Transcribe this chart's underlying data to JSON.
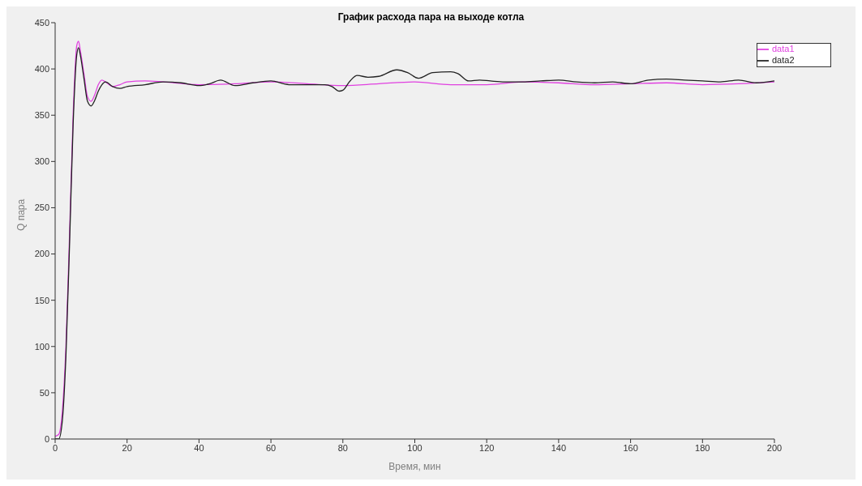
{
  "chart_data": {
    "type": "line",
    "title": "График расхода пара на выходе котла",
    "xlabel": "Время, мин",
    "ylabel": "Q пара",
    "xlim": [
      0,
      200
    ],
    "xticks": [
      0,
      20,
      40,
      60,
      80,
      100,
      120,
      140,
      160,
      180,
      200
    ],
    "ylim": [
      0,
      450
    ],
    "yticks": [
      0,
      50,
      100,
      150,
      200,
      250,
      300,
      350,
      400,
      450
    ],
    "legend": "top right",
    "grid": false,
    "marker": "none",
    "line_style": "solid",
    "series": [
      {
        "name": "data1",
        "color": "#e040e0",
        "x": [
          0,
          1,
          2,
          3,
          4,
          5,
          6,
          6.5,
          7,
          8,
          9,
          10,
          11,
          12,
          13,
          14,
          16,
          18,
          20,
          25,
          30,
          40,
          50,
          60,
          70,
          80,
          90,
          100,
          110,
          120,
          130,
          140,
          150,
          160,
          170,
          180,
          190,
          200
        ],
        "values": [
          3,
          5,
          30,
          100,
          220,
          350,
          425,
          430,
          420,
          395,
          370,
          365,
          372,
          383,
          388,
          386,
          381,
          383,
          386,
          387,
          386,
          383,
          384,
          386,
          384,
          382,
          384,
          386,
          383,
          383,
          386,
          385,
          383,
          384,
          385,
          383,
          384,
          386
        ]
      },
      {
        "name": "data2",
        "color": "#222222",
        "x": [
          0,
          1,
          2,
          3,
          4,
          5,
          6,
          6.5,
          7,
          8,
          9,
          10,
          11,
          12,
          13,
          14,
          16,
          18,
          20,
          25,
          30,
          35,
          40,
          43,
          46,
          50,
          55,
          60,
          65,
          70,
          75,
          77,
          79,
          80,
          82,
          84,
          87,
          90,
          95,
          98,
          101,
          105,
          110,
          112,
          115,
          118,
          121,
          125,
          130,
          135,
          140,
          145,
          150,
          155,
          160,
          165,
          170,
          175,
          180,
          185,
          190,
          195,
          200
        ],
        "values": [
          0,
          0,
          20,
          90,
          210,
          340,
          415,
          423,
          415,
          390,
          365,
          360,
          366,
          376,
          383,
          386,
          381,
          379,
          381,
          383,
          386,
          385,
          382,
          384,
          388,
          382,
          385,
          387,
          383,
          383,
          383,
          381,
          376,
          377,
          387,
          393,
          391,
          392,
          399,
          396,
          390,
          396,
          397,
          395,
          387,
          388,
          387,
          386,
          386,
          387,
          388,
          386,
          385,
          386,
          384,
          388,
          389,
          388,
          387,
          386,
          388,
          385,
          387
        ]
      }
    ]
  }
}
